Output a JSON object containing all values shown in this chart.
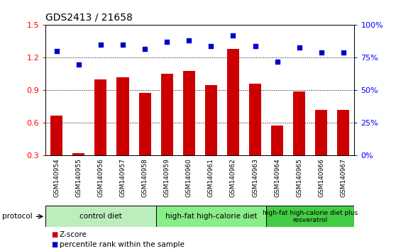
{
  "title": "GDS2413 / 21658",
  "samples": [
    "GSM140954",
    "GSM140955",
    "GSM140956",
    "GSM140957",
    "GSM140958",
    "GSM140959",
    "GSM140960",
    "GSM140961",
    "GSM140962",
    "GSM140963",
    "GSM140964",
    "GSM140965",
    "GSM140966",
    "GSM140967"
  ],
  "zscore": [
    0.67,
    0.32,
    1.0,
    1.02,
    0.88,
    1.05,
    1.08,
    0.95,
    1.28,
    0.96,
    0.58,
    0.89,
    0.72,
    0.72
  ],
  "percentile": [
    80,
    70,
    85,
    85,
    82,
    87,
    88,
    84,
    92,
    84,
    72,
    83,
    79,
    79
  ],
  "bar_color": "#cc0000",
  "dot_color": "#0000cc",
  "ylim_left": [
    0.3,
    1.5
  ],
  "ylim_right": [
    0,
    100
  ],
  "yticks_left": [
    0.3,
    0.6,
    0.9,
    1.2,
    1.5
  ],
  "ytick_labels_left": [
    "0.3",
    "0.6",
    "0.9",
    "1.2",
    "1.5"
  ],
  "yticks_right": [
    0,
    25,
    50,
    75,
    100
  ],
  "ytick_labels_right": [
    "0%",
    "25%",
    "50%",
    "75%",
    "100%"
  ],
  "groups": [
    {
      "label": "control diet",
      "start": 0,
      "end": 5,
      "color": "#bbeebb"
    },
    {
      "label": "high-fat high-calorie diet",
      "start": 5,
      "end": 10,
      "color": "#88ee88"
    },
    {
      "label": "high-fat high-calorie diet plus\nresveratrol",
      "start": 10,
      "end": 14,
      "color": "#44cc44"
    }
  ],
  "protocol_label": "protocol",
  "legend_zscore": "Z-score",
  "legend_percentile": "percentile rank within the sample",
  "xtick_bg_color": "#c8c8c8"
}
